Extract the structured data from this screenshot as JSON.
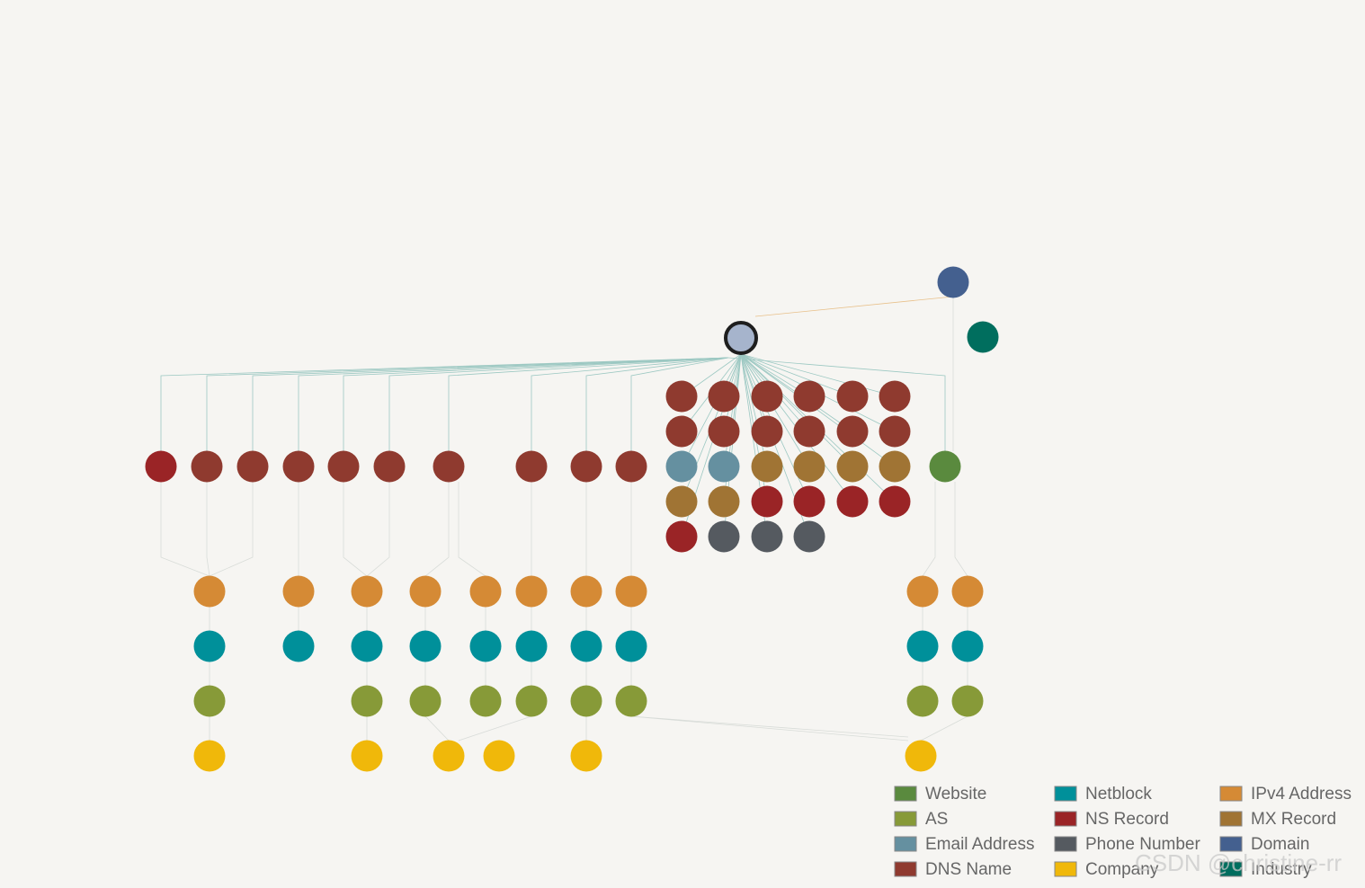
{
  "legend": [
    {
      "label": "Website",
      "color": "#5a8a3e"
    },
    {
      "label": "AS",
      "color": "#879a38"
    },
    {
      "label": "Email Address",
      "color": "#6590a0"
    },
    {
      "label": "DNS Name",
      "color": "#8f3a2f"
    },
    {
      "label": "Netblock",
      "color": "#00909a"
    },
    {
      "label": "NS Record",
      "color": "#9a2426"
    },
    {
      "label": "Phone Number",
      "color": "#555a60"
    },
    {
      "label": "Company",
      "color": "#f0b80a"
    },
    {
      "label": "IPv4 Address",
      "color": "#d58a35"
    },
    {
      "label": "MX Record",
      "color": "#a07434"
    },
    {
      "label": "Domain",
      "color": "#44608f"
    },
    {
      "label": "Industry",
      "color": "#006e5e"
    }
  ],
  "watermark": "CSDN @christine-rr"
}
